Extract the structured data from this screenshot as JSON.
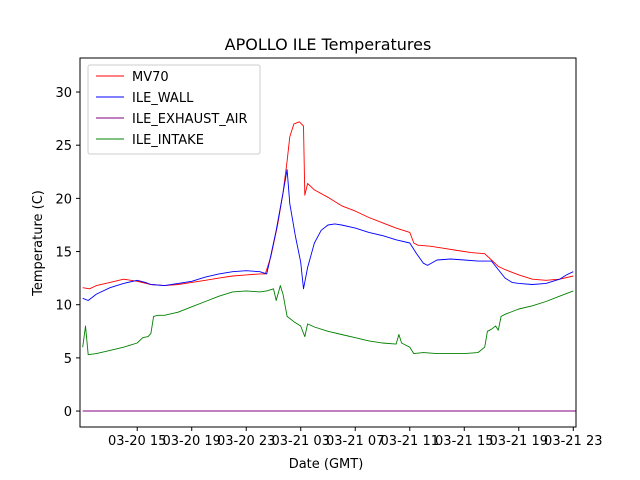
{
  "chart_data": {
    "type": "line",
    "title": "APOLLO ILE Temperatures",
    "xlabel": "Date (GMT)",
    "ylabel": "Temperature (C)",
    "x_ticks": [
      {
        "x": 15,
        "label": "03-20 15"
      },
      {
        "x": 19,
        "label": "03-20 19"
      },
      {
        "x": 23,
        "label": "03-20 23"
      },
      {
        "x": 27,
        "label": "03-21 03"
      },
      {
        "x": 31,
        "label": "03-21 07"
      },
      {
        "x": 35,
        "label": "03-21 11"
      },
      {
        "x": 39,
        "label": "03-21 15"
      },
      {
        "x": 43,
        "label": "03-21 19"
      },
      {
        "x": 47,
        "label": "03-21 23"
      }
    ],
    "y_ticks": [
      0,
      5,
      10,
      15,
      20,
      25,
      30
    ],
    "xlim": [
      10.8,
      47.2
    ],
    "ylim": [
      -1.5,
      33.2
    ],
    "x_unit_note_hidden": "",
    "grid": false,
    "legend": {
      "position": "top-left"
    },
    "series": [
      {
        "name": "MV70",
        "color": "#ff0000",
        "points": [
          [
            11.0,
            11.6
          ],
          [
            11.5,
            11.5
          ],
          [
            12.0,
            11.8
          ],
          [
            13.0,
            12.1
          ],
          [
            14.0,
            12.4
          ],
          [
            15.0,
            12.2
          ],
          [
            16.0,
            11.9
          ],
          [
            17.0,
            11.8
          ],
          [
            18.0,
            11.9
          ],
          [
            19.0,
            12.1
          ],
          [
            20.0,
            12.3
          ],
          [
            21.0,
            12.5
          ],
          [
            22.0,
            12.7
          ],
          [
            23.0,
            12.8
          ],
          [
            24.0,
            12.9
          ],
          [
            24.4,
            12.9
          ],
          [
            24.8,
            14.5
          ],
          [
            25.3,
            17.5
          ],
          [
            25.7,
            20.5
          ],
          [
            26.0,
            23.5
          ],
          [
            26.2,
            25.8
          ],
          [
            26.5,
            27.0
          ],
          [
            26.9,
            27.2
          ],
          [
            27.2,
            26.8
          ],
          [
            27.3,
            20.3
          ],
          [
            27.5,
            21.4
          ],
          [
            28.0,
            20.8
          ],
          [
            29.0,
            20.1
          ],
          [
            30.0,
            19.3
          ],
          [
            31.0,
            18.8
          ],
          [
            32.0,
            18.2
          ],
          [
            33.0,
            17.7
          ],
          [
            34.0,
            17.2
          ],
          [
            35.0,
            16.8
          ],
          [
            35.3,
            15.8
          ],
          [
            35.6,
            15.6
          ],
          [
            36.5,
            15.5
          ],
          [
            37.5,
            15.3
          ],
          [
            38.5,
            15.1
          ],
          [
            39.5,
            14.9
          ],
          [
            40.5,
            14.8
          ],
          [
            41.0,
            14.2
          ],
          [
            41.5,
            13.6
          ],
          [
            42.0,
            13.3
          ],
          [
            43.0,
            12.8
          ],
          [
            44.0,
            12.4
          ],
          [
            45.0,
            12.3
          ],
          [
            46.0,
            12.4
          ],
          [
            47.0,
            12.7
          ]
        ]
      },
      {
        "name": "ILE_WALL",
        "color": "#0000ff",
        "points": [
          [
            11.0,
            10.6
          ],
          [
            11.4,
            10.4
          ],
          [
            12.0,
            11.0
          ],
          [
            13.0,
            11.6
          ],
          [
            14.0,
            12.0
          ],
          [
            15.0,
            12.3
          ],
          [
            15.6,
            12.1
          ],
          [
            16.0,
            11.9
          ],
          [
            17.0,
            11.8
          ],
          [
            18.0,
            12.0
          ],
          [
            19.0,
            12.2
          ],
          [
            20.0,
            12.6
          ],
          [
            21.0,
            12.9
          ],
          [
            22.0,
            13.1
          ],
          [
            23.0,
            13.2
          ],
          [
            24.0,
            13.1
          ],
          [
            24.5,
            12.9
          ],
          [
            24.7,
            14.0
          ],
          [
            25.2,
            17.0
          ],
          [
            25.7,
            20.5
          ],
          [
            26.0,
            22.7
          ],
          [
            26.2,
            19.5
          ],
          [
            26.6,
            16.5
          ],
          [
            27.0,
            14.0
          ],
          [
            27.2,
            11.5
          ],
          [
            27.5,
            13.5
          ],
          [
            28.0,
            15.8
          ],
          [
            28.5,
            17.0
          ],
          [
            29.0,
            17.5
          ],
          [
            29.5,
            17.6
          ],
          [
            30.0,
            17.5
          ],
          [
            31.0,
            17.2
          ],
          [
            32.0,
            16.8
          ],
          [
            33.0,
            16.5
          ],
          [
            34.0,
            16.1
          ],
          [
            35.0,
            15.8
          ],
          [
            35.5,
            14.8
          ],
          [
            36.0,
            13.9
          ],
          [
            36.3,
            13.7
          ],
          [
            37.0,
            14.2
          ],
          [
            38.0,
            14.3
          ],
          [
            39.0,
            14.2
          ],
          [
            40.0,
            14.1
          ],
          [
            41.0,
            14.1
          ],
          [
            41.5,
            13.3
          ],
          [
            42.0,
            12.5
          ],
          [
            42.5,
            12.1
          ],
          [
            43.0,
            12.0
          ],
          [
            44.0,
            11.9
          ],
          [
            45.0,
            12.0
          ],
          [
            46.0,
            12.4
          ],
          [
            46.5,
            12.8
          ],
          [
            47.0,
            13.1
          ]
        ]
      },
      {
        "name": "ILE_EXHAUST_AIR",
        "color": "#800080",
        "points": [
          [
            11.0,
            0.0
          ],
          [
            47.2,
            0.0
          ]
        ]
      },
      {
        "name": "ILE_INTAKE",
        "color": "#008000",
        "points": [
          [
            11.0,
            6.0
          ],
          [
            11.2,
            8.0
          ],
          [
            11.4,
            5.3
          ],
          [
            12.0,
            5.4
          ],
          [
            13.0,
            5.7
          ],
          [
            14.0,
            6.0
          ],
          [
            15.0,
            6.4
          ],
          [
            15.4,
            6.9
          ],
          [
            15.8,
            7.0
          ],
          [
            16.0,
            7.3
          ],
          [
            16.2,
            8.9
          ],
          [
            16.5,
            9.0
          ],
          [
            17.0,
            9.0
          ],
          [
            18.0,
            9.3
          ],
          [
            19.0,
            9.8
          ],
          [
            20.0,
            10.3
          ],
          [
            21.0,
            10.8
          ],
          [
            22.0,
            11.2
          ],
          [
            23.0,
            11.3
          ],
          [
            24.0,
            11.2
          ],
          [
            24.5,
            11.3
          ],
          [
            25.0,
            11.5
          ],
          [
            25.2,
            10.4
          ],
          [
            25.5,
            11.8
          ],
          [
            25.7,
            11.0
          ],
          [
            26.0,
            8.9
          ],
          [
            26.5,
            8.4
          ],
          [
            27.0,
            8.0
          ],
          [
            27.3,
            7.0
          ],
          [
            27.5,
            8.2
          ],
          [
            28.0,
            7.9
          ],
          [
            29.0,
            7.5
          ],
          [
            30.0,
            7.2
          ],
          [
            31.0,
            6.9
          ],
          [
            32.0,
            6.6
          ],
          [
            33.0,
            6.4
          ],
          [
            34.0,
            6.3
          ],
          [
            34.2,
            7.2
          ],
          [
            34.4,
            6.4
          ],
          [
            34.7,
            6.2
          ],
          [
            35.0,
            6.0
          ],
          [
            35.3,
            5.4
          ],
          [
            36.0,
            5.5
          ],
          [
            37.0,
            5.4
          ],
          [
            38.0,
            5.4
          ],
          [
            39.0,
            5.4
          ],
          [
            40.0,
            5.5
          ],
          [
            40.5,
            6.0
          ],
          [
            40.7,
            7.5
          ],
          [
            41.0,
            7.7
          ],
          [
            41.3,
            8.0
          ],
          [
            41.5,
            7.6
          ],
          [
            41.7,
            8.9
          ],
          [
            42.0,
            9.1
          ],
          [
            43.0,
            9.6
          ],
          [
            44.0,
            9.9
          ],
          [
            45.0,
            10.3
          ],
          [
            46.0,
            10.8
          ],
          [
            47.0,
            11.3
          ]
        ]
      }
    ]
  }
}
